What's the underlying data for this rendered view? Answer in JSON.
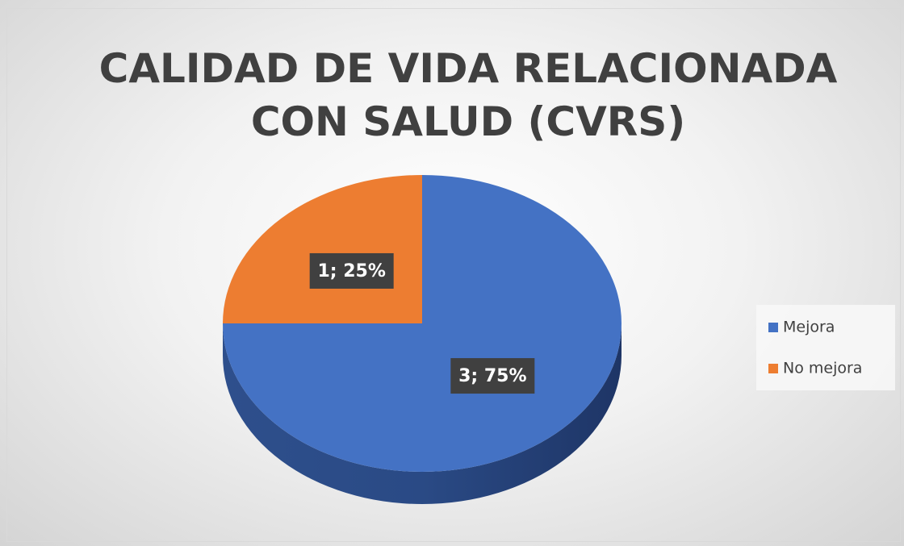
{
  "chart_data": {
    "type": "pie",
    "title": "CALIDAD DE VIDA RELACIONADA CON SALUD (CVRS)",
    "categories": [
      "Mejora",
      "No mejora"
    ],
    "values": [
      3,
      1
    ],
    "value_labels": [
      "3; 75%",
      "1; 25%"
    ],
    "colors": [
      "#4472c4",
      "#ed7d31"
    ],
    "legend": "right"
  }
}
